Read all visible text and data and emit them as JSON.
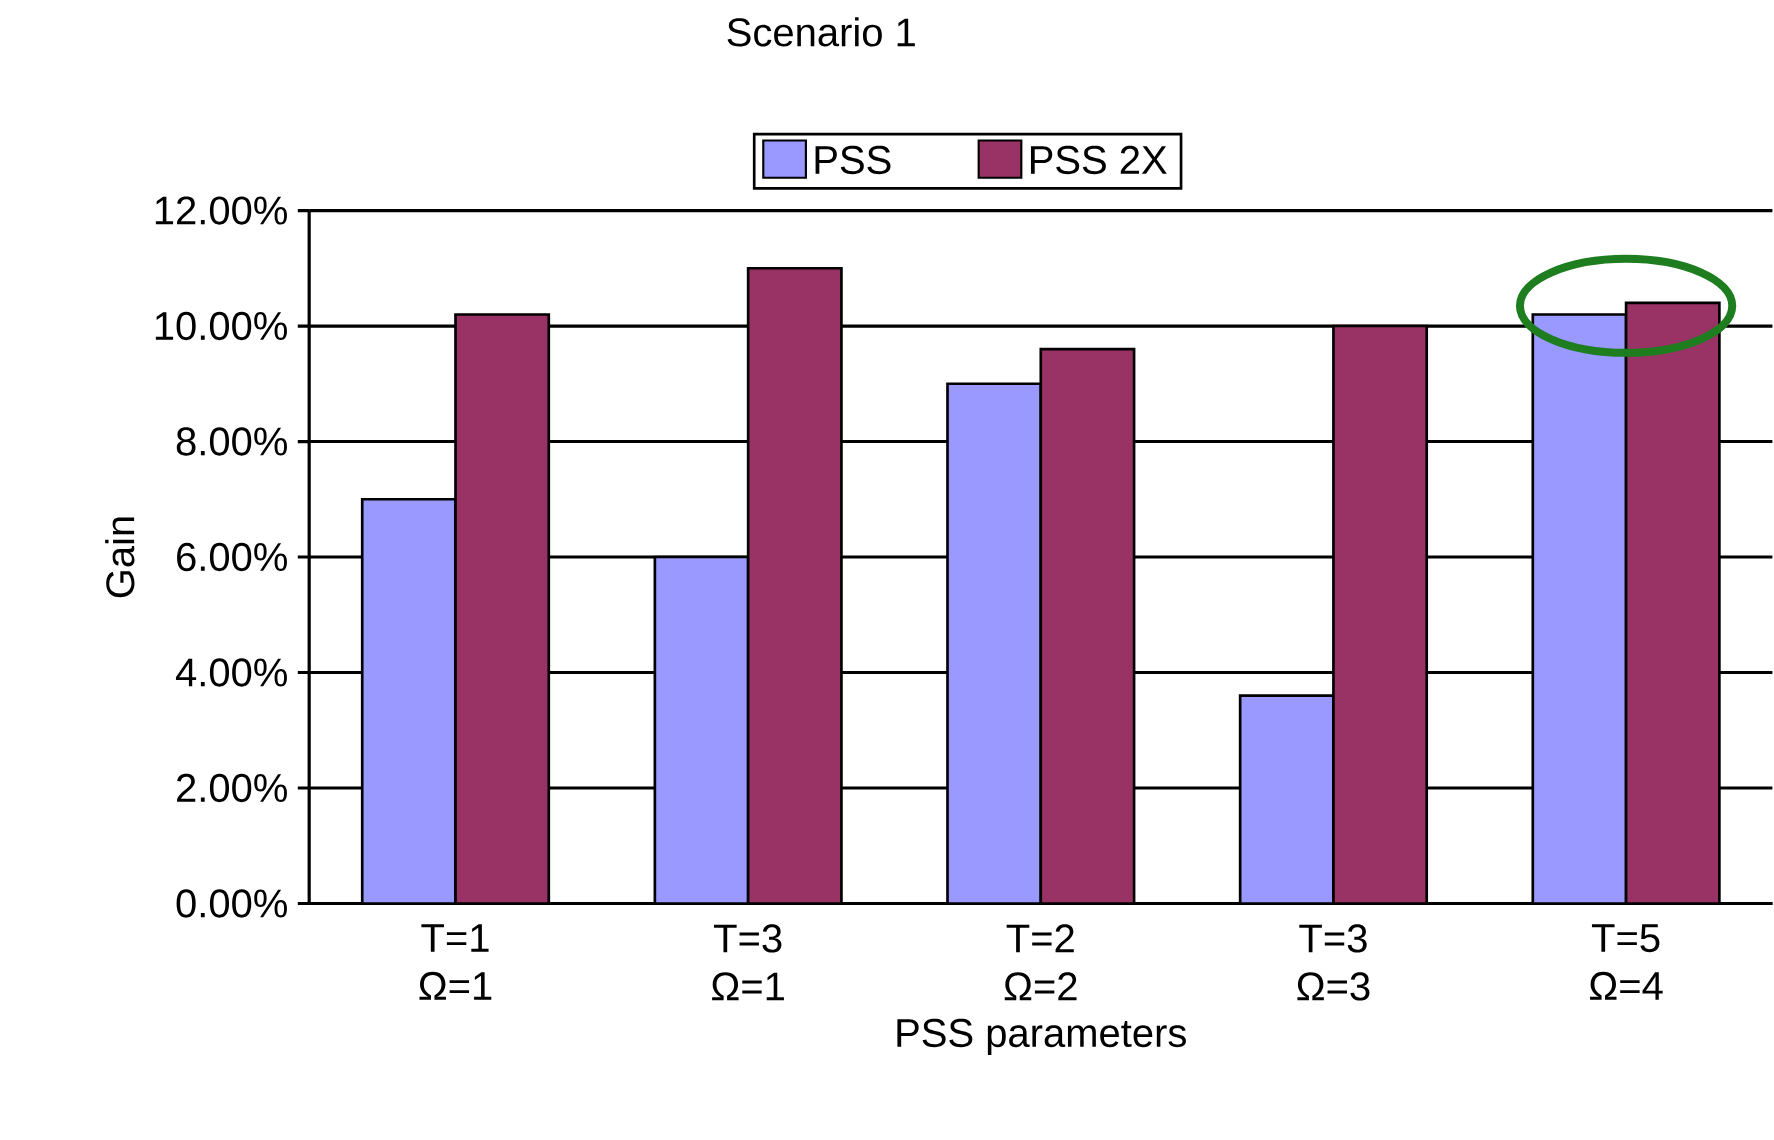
{
  "chart_data": {
    "type": "bar",
    "title": "Scenario 1",
    "xlabel": "PSS parameters",
    "ylabel": "Gain",
    "categories": [
      "T=1 Ω=1",
      "T=3 Ω=1",
      "T=2 Ω=2",
      "T=3 Ω=3",
      "T=5 Ω=4"
    ],
    "series": [
      {
        "name": "PSS",
        "color": "#9999ff",
        "values": [
          7.0,
          6.0,
          9.0,
          3.6,
          10.2
        ]
      },
      {
        "name": "PSS 2X",
        "color": "#993366",
        "values": [
          10.2,
          11.0,
          9.6,
          10.0,
          10.4
        ]
      }
    ],
    "ylim": [
      0,
      12
    ],
    "yticks": [
      {
        "value": 0,
        "label": "0.00%"
      },
      {
        "value": 2,
        "label": "2.00%"
      },
      {
        "value": 4,
        "label": "4.00%"
      },
      {
        "value": 6,
        "label": "6.00%"
      },
      {
        "value": 8,
        "label": "8.00%"
      },
      {
        "value": 10,
        "label": "10.00%"
      },
      {
        "value": 12,
        "label": "12.00%"
      }
    ],
    "grid": "y",
    "legend": "top"
  }
}
